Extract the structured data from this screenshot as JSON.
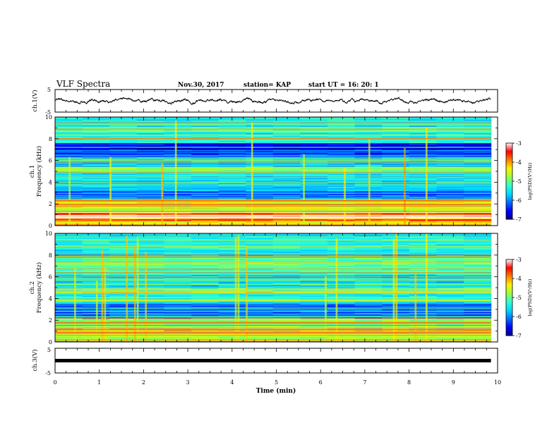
{
  "header": {
    "title": "VLF Spectra",
    "date": "Nov.30, 2017",
    "station": "station= KAP",
    "start_time": "start  UT =   16: 20: 1"
  },
  "chart_data": [
    {
      "type": "line",
      "name": "ch1-waveform",
      "ylabel": "ch.1(V)",
      "ylim": [
        -5,
        5
      ],
      "yticks": [
        "5",
        "-5"
      ],
      "xlim": [
        0,
        10
      ],
      "x_range_data": [
        0,
        9.85
      ],
      "baseline": 0,
      "amplitude": 1.2
    },
    {
      "type": "heatmap",
      "name": "ch1-spectrogram",
      "ylabel": "ch.1\nFrequency (kHz)",
      "ylabel_lines": [
        "ch.1",
        "Frequency (kHz)"
      ],
      "ylim": [
        0,
        10
      ],
      "yticks": [
        "0",
        "2",
        "4",
        "6",
        "8",
        "10"
      ],
      "xlim": [
        0,
        10
      ],
      "x_range_data": [
        0,
        9.85
      ],
      "colorbar": {
        "label": "log(PSD)(V²/Hz)",
        "range": [
          -7,
          -3
        ],
        "ticks": [
          "-3",
          "-4",
          "-5",
          "-6",
          "-7"
        ]
      },
      "bands_khz": [
        {
          "from": 0.0,
          "to": 0.4,
          "level": -4.5
        },
        {
          "from": 0.4,
          "to": 1.2,
          "level": -3.8
        },
        {
          "from": 1.2,
          "to": 2.4,
          "level": -4.6
        },
        {
          "from": 2.4,
          "to": 3.2,
          "level": -6.2
        },
        {
          "from": 3.2,
          "to": 4.8,
          "level": -5.6
        },
        {
          "from": 4.8,
          "to": 5.4,
          "level": -4.9
        },
        {
          "from": 5.4,
          "to": 6.3,
          "level": -5.7
        },
        {
          "from": 6.3,
          "to": 7.6,
          "level": -6.5
        },
        {
          "from": 7.6,
          "to": 10.0,
          "level": -5.4
        }
      ]
    },
    {
      "type": "heatmap",
      "name": "ch2-spectrogram",
      "ylabel": "ch.2\nFrequency (kHz)",
      "ylabel_lines": [
        "ch.2",
        "Frequency (kHz)"
      ],
      "ylim": [
        0,
        10
      ],
      "yticks": [
        "0",
        "2",
        "4",
        "6",
        "8",
        "10"
      ],
      "xlim": [
        0,
        10
      ],
      "x_range_data": [
        0,
        9.85
      ],
      "colorbar": {
        "label": "log(PSD)(V²/Hz)",
        "range": [
          -7,
          -3
        ],
        "ticks": [
          "-3",
          "-4",
          "-5",
          "-6",
          "-7"
        ]
      },
      "bands_khz": [
        {
          "from": 0.0,
          "to": 1.2,
          "level": -4.7
        },
        {
          "from": 1.2,
          "to": 2.2,
          "level": -4.9
        },
        {
          "from": 2.2,
          "to": 3.6,
          "level": -6.2
        },
        {
          "from": 3.6,
          "to": 5.0,
          "level": -5.3
        },
        {
          "from": 5.0,
          "to": 6.2,
          "level": -5.6
        },
        {
          "from": 6.2,
          "to": 8.0,
          "level": -5.1
        },
        {
          "from": 8.0,
          "to": 10.0,
          "level": -5.4
        }
      ]
    },
    {
      "type": "line",
      "name": "ch3-waveform",
      "ylabel": "ch.3(V)",
      "ylim": [
        -5,
        5
      ],
      "yticks": [
        "5",
        "-5"
      ],
      "xlim": [
        0,
        10
      ],
      "x_range_data": [
        0,
        9.85
      ],
      "baseline": 0,
      "amplitude": 0
    }
  ],
  "x_axis": {
    "label": "Time (min)",
    "ticks": [
      "0",
      "1",
      "2",
      "3",
      "4",
      "5",
      "6",
      "7",
      "8",
      "9",
      "10"
    ]
  },
  "colormap": [
    "#00008b",
    "#0000ff",
    "#0070ff",
    "#00d8ff",
    "#2fffd0",
    "#9bff3c",
    "#fff000",
    "#ff8000",
    "#ff0000",
    "#ffffff"
  ]
}
